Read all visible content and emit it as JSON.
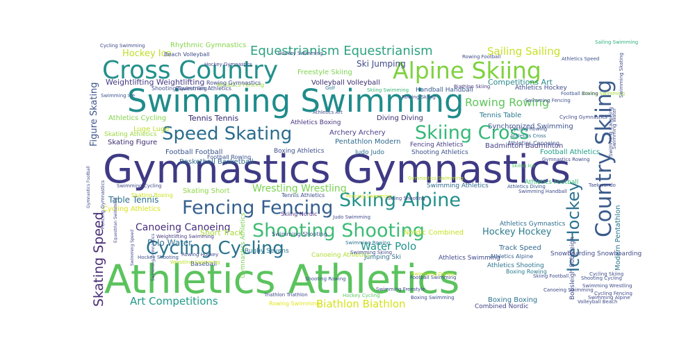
{
  "word_cloud": {
    "words": [
      {
        "text": "Gymnastics Gymnastics",
        "color": "#3f3a85"
      },
      {
        "text": "Athletics Athletics",
        "color": "#5bc35e"
      },
      {
        "text": "Swimming Swimming",
        "color": "#1f8c8b"
      },
      {
        "text": "Cross Country",
        "color": "#23908b"
      },
      {
        "text": "Alpine Skiing",
        "color": "#7fd23f"
      },
      {
        "text": "Country Skiing",
        "color": "#3b5b8c"
      },
      {
        "text": "Speed Skating",
        "color": "#2a6c8e"
      },
      {
        "text": "Skiing Cross",
        "color": "#34b878"
      },
      {
        "text": "Fencing Fencing",
        "color": "#345f8d"
      },
      {
        "text": "Skiing Alpine",
        "color": "#238f8a"
      },
      {
        "text": "Shooting Shooting",
        "color": "#3dbc74"
      },
      {
        "text": "Cycling Cycling",
        "color": "#2b748e"
      },
      {
        "text": "Ice Hockey",
        "color": "#2d728e"
      },
      {
        "text": "Skating Speed",
        "color": "#482b73"
      },
      {
        "text": "Equestrianism Equestrianism",
        "color": "#2da27f"
      },
      {
        "text": "Rowing Rowing",
        "color": "#5fc55b"
      },
      {
        "text": "Sailing Sailing",
        "color": "#c8df24"
      },
      {
        "text": "Ski Jumping",
        "color": "#3f4a89"
      },
      {
        "text": "Water Polo",
        "color": "#1f948c"
      },
      {
        "text": "Art Competitions",
        "color": "#1f9a89"
      },
      {
        "text": "Biathlon Biathlon",
        "color": "#d5e21a"
      },
      {
        "text": "Canoeing Canoeing",
        "color": "#472f7d"
      },
      {
        "text": "Wrestling Wrestling",
        "color": "#7ad151"
      },
      {
        "text": "Hockey Hockey",
        "color": "#2c7b8d"
      },
      {
        "text": "Figure Skating",
        "color": "#3c528b"
      },
      {
        "text": "Weightlifting Weightlifting",
        "color": "#443a83"
      },
      {
        "text": "Hockey Ice",
        "color": "#bddf26"
      },
      {
        "text": "Tennis Tennis",
        "color": "#2d1f6a"
      },
      {
        "text": "Basketball Basketball",
        "color": "#2f6c8e"
      },
      {
        "text": "Football Football",
        "color": "#3a548c"
      },
      {
        "text": "Skating Figure",
        "color": "#3a2a6e"
      },
      {
        "text": "Table Tennis",
        "color": "#2c718e"
      },
      {
        "text": "Polo Water",
        "color": "#2e6e8e"
      },
      {
        "text": "Short Track",
        "color": "#a5db36"
      },
      {
        "text": "Competitions Art",
        "color": "#2b8a8c"
      },
      {
        "text": "Athletics Cycling",
        "color": "#82d34d"
      },
      {
        "text": "Rhythmic Gymnastics",
        "color": "#86d549"
      },
      {
        "text": "Freestyle Skiing",
        "color": "#7ed34f"
      },
      {
        "text": "Volleyball Volleyball",
        "color": "#3a2b6e"
      },
      {
        "text": "Diving Diving",
        "color": "#3a2b6e"
      },
      {
        "text": "Archery Archery",
        "color": "#4a3d8a"
      },
      {
        "text": "Pentathlon Modern",
        "color": "#2f6a8d"
      },
      {
        "text": "Luge Luge",
        "color": "#bade28"
      },
      {
        "text": "Skating Athletics",
        "color": "#9ad740"
      },
      {
        "text": "Skating Short",
        "color": "#8ed645"
      },
      {
        "text": "Cycling Athletics",
        "color": "#d8e219"
      },
      {
        "text": "Tennis Table",
        "color": "#2a788e"
      },
      {
        "text": "Synchronized Swimming",
        "color": "#3b528b"
      },
      {
        "text": "Badminton Badminton",
        "color": "#433e85"
      },
      {
        "text": "Football Athletics",
        "color": "#1f9e89"
      },
      {
        "text": "Modern Pentathlon",
        "color": "#2a778e"
      },
      {
        "text": "Nordic Combined",
        "color": "#c5e021"
      },
      {
        "text": "Track Speed",
        "color": "#31688e"
      },
      {
        "text": "Boxing Boxing",
        "color": "#2c728e"
      },
      {
        "text": "Combined Nordic",
        "color": "#414487"
      },
      {
        "text": "Bobsleigh Bobsleigh",
        "color": "#3e4a89"
      },
      {
        "text": "Judo Judo",
        "color": "#2e6f8e"
      },
      {
        "text": "Jumping Ski",
        "color": "#2d718e"
      },
      {
        "text": "Beach Volleyball",
        "color": "#3e4989"
      },
      {
        "text": "Handball Handball",
        "color": "#38588c"
      },
      {
        "text": "Athletics Boxing",
        "color": "#46327e"
      },
      {
        "text": "Shooting Athletics",
        "color": "#3b528b"
      },
      {
        "text": "Boxing Athletics",
        "color": "#3d4e8a"
      },
      {
        "text": "Fencing Athletics",
        "color": "#443a83"
      },
      {
        "text": "Athletics Hockey",
        "color": "#3e4c8a"
      },
      {
        "text": "Athletics Swimming",
        "color": "#3f4889"
      },
      {
        "text": "Athletics Shooting",
        "color": "#2b748e"
      },
      {
        "text": "Swimming Athletics",
        "color": "#2f6b8e"
      },
      {
        "text": "Athletics Football",
        "color": "#38b977"
      },
      {
        "text": "Athletics Gymnastics",
        "color": "#2e6d8e"
      },
      {
        "text": "Gymnastics Athletics",
        "color": "#7ad151"
      },
      {
        "text": "Athletics Fencing",
        "color": "#99d83d"
      },
      {
        "text": "Equestrian Athletics",
        "color": "#3e4c8a"
      },
      {
        "text": "Skiing Nordic",
        "color": "#472e7c"
      },
      {
        "text": "Shooting Swimming",
        "color": "#3d4d8a"
      },
      {
        "text": "Swimming Shooting",
        "color": "#3b528b"
      },
      {
        "text": "Canoeing Athletics",
        "color": "#b0dd2f"
      },
      {
        "text": "Rugby Sevens",
        "color": "#2c738e"
      },
      {
        "text": "Snowboarding Snowboarding",
        "color": "#3e4a89"
      },
      {
        "text": "Athletics Alpine",
        "color": "#355e8d"
      },
      {
        "text": "Baseball",
        "color": "#3c508b"
      },
      {
        "text": "Golf",
        "color": "#2b758e"
      },
      {
        "text": "Football Rowing",
        "color": "#3b528b"
      },
      {
        "text": "Cycling Swimming",
        "color": "#3e4989"
      },
      {
        "text": "Rowing Swimming",
        "color": "#e2e418"
      },
      {
        "text": "Boxing Rowing",
        "color": "#29798e"
      },
      {
        "text": "Rowing Gymnastics",
        "color": "#3e4989"
      },
      {
        "text": "Hockey Gymnastics",
        "color": "#414487"
      },
      {
        "text": "Skating Boxing",
        "color": "#cae11f"
      },
      {
        "text": "Swimming Cycling",
        "color": "#3f4788"
      },
      {
        "text": "Hockey Swimming",
        "color": "#3e4a89"
      },
      {
        "text": "Athletics Canoeing",
        "color": "#3d4d8a"
      },
      {
        "text": "Skiing Swimming",
        "color": "#35b779"
      },
      {
        "text": "Swimming Rowing",
        "color": "#2c728e"
      },
      {
        "text": "Athletics Art",
        "color": "#3e4c8a"
      },
      {
        "text": "Hockey Cycling",
        "color": "#5ec962"
      },
      {
        "text": "Cycling Rowing",
        "color": "#3b528b"
      },
      {
        "text": "Athletics Cross",
        "color": "#2d708e"
      },
      {
        "text": "Skiing Ice",
        "color": "#4fc16b"
      },
      {
        "text": "Swimming Ice",
        "color": "#39558c"
      },
      {
        "text": "Biathlon Skiing",
        "color": "#44397f"
      },
      {
        "text": "Athletics Speed",
        "color": "#3b528b"
      },
      {
        "text": "Rowing Football",
        "color": "#3e4989"
      },
      {
        "text": "Swimming Fencing",
        "color": "#3e4c8a"
      },
      {
        "text": "Athletics Diving",
        "color": "#39568c"
      },
      {
        "text": "Swimming Handball",
        "color": "#3e4a89"
      },
      {
        "text": "Gymnastics Swimming",
        "color": "#b8de29"
      },
      {
        "text": "Tennis Athletics",
        "color": "#3d4e8a"
      },
      {
        "text": "Fencing Swimming",
        "color": "#d2e21b"
      },
      {
        "text": "Shooting Rowing",
        "color": "#3b528b"
      },
      {
        "text": "Judo Swimming",
        "color": "#3e4c8a"
      },
      {
        "text": "Rowing Hockey",
        "color": "#3e4989"
      },
      {
        "text": "Weightlifting Swimming",
        "color": "#44397f"
      },
      {
        "text": "Wrestling Swimming",
        "color": "#c0df25"
      },
      {
        "text": "Hockey Shooting",
        "color": "#3b528b"
      },
      {
        "text": "Football Swimming",
        "color": "#3e4989"
      },
      {
        "text": "Triathlon Triathlon",
        "color": "#3e4989"
      },
      {
        "text": "Boxing Swimming",
        "color": "#3e4c8a"
      },
      {
        "text": "Skiing Shooting",
        "color": "#3e4989"
      },
      {
        "text": "Swimming Diving",
        "color": "#c8e020"
      },
      {
        "text": "Diving Swimming",
        "color": "#9fda3a"
      },
      {
        "text": "Football Boxing",
        "color": "#3b528b"
      },
      {
        "text": "Cycling Skiing",
        "color": "#3e4989"
      },
      {
        "text": "Shooting Cycling",
        "color": "#3d4e8a"
      },
      {
        "text": "Swimming Wrestling",
        "color": "#3e4989"
      },
      {
        "text": "Sailing Swimming",
        "color": "#2fb47c"
      },
      {
        "text": "Skiing Football",
        "color": "#3e4989"
      },
      {
        "text": "Canoeing Swimming",
        "color": "#3e4989"
      },
      {
        "text": "Cycling Fencing",
        "color": "#3e4989"
      },
      {
        "text": "Volleyball Beach",
        "color": "#3e4989"
      },
      {
        "text": "Swimming Alpine",
        "color": "#3e4989"
      },
      {
        "text": "Taekwondo",
        "color": "#3e4989"
      },
      {
        "text": "Cycling Gymnastics",
        "color": "#3e4989"
      },
      {
        "text": "Gymnastics Rowing",
        "color": "#3e4989"
      },
      {
        "text": "Swimming Canoeing",
        "color": "#3e4989"
      },
      {
        "text": "Swimming Skating",
        "color": "#3e4989"
      },
      {
        "text": "Fencing Gymnastics",
        "color": "#3e4989"
      },
      {
        "text": "Gymnastics Football",
        "color": "#3e4989"
      },
      {
        "text": "Equestrian Swimming",
        "color": "#3e4989"
      },
      {
        "text": "Swimming Gymnastics",
        "color": "#3e4989"
      },
      {
        "text": "Swimming Speed",
        "color": "#3e4989"
      },
      {
        "text": "Swimming Water",
        "color": "#3e4989"
      },
      {
        "text": "Swimming Skiing",
        "color": "#3e4989"
      },
      {
        "text": "Swimming Freestyle",
        "color": "#3e4989"
      },
      {
        "text": "Rowing Skiing",
        "color": "#3e4989"
      }
    ]
  }
}
